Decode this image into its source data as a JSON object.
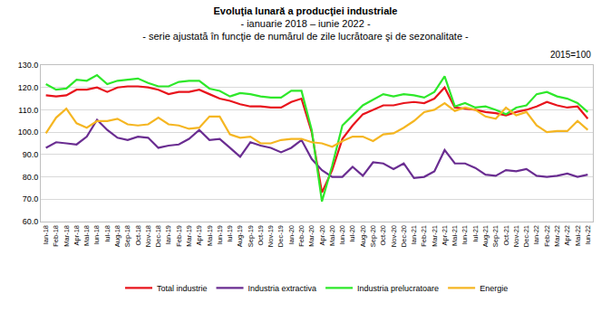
{
  "chart_data": {
    "type": "line",
    "title": "Evoluţia lunară a producţiei industriale",
    "subtitle": [
      "- ianuarie 2018 – iunie 2022 -",
      "- serie ajustată în funcţie de numărul de zile lucrătoare şi de sezonalitate -"
    ],
    "annotations": [
      "2015=100"
    ],
    "categories": [
      "Ian-18",
      "Feb-18",
      "Mar-18",
      "Apr-18",
      "Mai-18",
      "Iun-18",
      "Iul-18",
      "Aug-18",
      "Sep-18",
      "Oct-18",
      "Nov-18",
      "Dec-18",
      "Ian-19",
      "Feb-19",
      "Mar-19",
      "Apr-19",
      "Mai-19",
      "Iun-19",
      "Iul-19",
      "Aug-19",
      "Sep-19",
      "Oct-19",
      "Nov-19",
      "Dec-19",
      "Ian-20",
      "Feb-20",
      "Mar-20",
      "Apr-20",
      "Mai-20",
      "Iun-20",
      "Iul-20",
      "Aug-20",
      "Sep-20",
      "Oct-20",
      "Nov-20",
      "Dec-20",
      "Ian-21",
      "Feb-21",
      "Mar-21",
      "Apr-21",
      "Mai-21",
      "Iun-21",
      "Iul-21",
      "Aug-21",
      "Sep-21",
      "Oct-21",
      "Nov-21",
      "Dec-21",
      "Ian-22",
      "Feb-22",
      "Mar-22",
      "Apr-22",
      "Mai-22",
      "Iun-22"
    ],
    "series": [
      {
        "name": "Total industrie",
        "color": "#e8141c",
        "values": [
          116.5,
          116,
          116.5,
          119,
          119,
          120,
          118,
          120,
          120.5,
          120.5,
          120,
          119,
          117,
          118,
          118,
          119,
          117,
          115,
          114,
          112.5,
          111.5,
          111.5,
          111,
          111,
          113.5,
          115,
          100,
          73,
          83,
          97,
          103,
          108,
          110,
          112,
          112,
          113,
          113.5,
          113,
          115,
          120,
          111,
          110.5,
          110,
          109,
          108.5,
          107.5,
          109,
          110,
          111.5,
          113.5,
          112,
          111,
          111.5,
          106
        ]
      },
      {
        "name": "Industria extractiva",
        "color": "#6a2d91",
        "values": [
          93,
          95.5,
          95,
          94.5,
          98,
          105.5,
          101,
          97.5,
          96.5,
          98,
          97.5,
          93,
          94,
          94.5,
          97,
          101,
          96.5,
          97,
          93,
          89,
          95.5,
          94,
          93,
          91,
          93,
          96.5,
          88,
          83,
          80,
          80,
          84.5,
          80.5,
          86.5,
          86,
          83.5,
          86,
          79.5,
          80,
          82.5,
          92,
          86,
          86,
          84,
          81,
          80.5,
          83,
          82.5,
          83.5,
          80.5,
          80,
          80.5,
          81.5,
          80,
          81
        ]
      },
      {
        "name": "Industria prelucratoare",
        "color": "#2ee82a",
        "values": [
          121.5,
          119,
          119.5,
          123.5,
          123,
          125.5,
          121.5,
          123,
          123.5,
          124,
          122,
          120.5,
          120.5,
          122.5,
          123,
          123,
          119.5,
          118.5,
          116,
          117.5,
          117,
          116,
          115.5,
          115.5,
          118.5,
          118.5,
          101,
          69,
          85,
          103,
          107.5,
          112,
          114.5,
          117,
          116,
          117,
          116.5,
          115.5,
          118,
          125,
          111.5,
          113,
          111,
          111.5,
          110,
          108,
          111,
          112,
          117,
          118,
          116,
          115,
          113,
          109
        ]
      },
      {
        "name": "Energie",
        "color": "#f5b622",
        "values": [
          99.5,
          106.5,
          110.5,
          104,
          102,
          105,
          105,
          106,
          103.5,
          103,
          103.5,
          106.5,
          103.5,
          103,
          101.5,
          102,
          107,
          107,
          99,
          97.5,
          98,
          95,
          95,
          96.5,
          97,
          97,
          95.5,
          95,
          93.5,
          96,
          98,
          98,
          96,
          99,
          99.5,
          102,
          105,
          109,
          110,
          113,
          109.5,
          111,
          110,
          107,
          106,
          111,
          107.5,
          109,
          103,
          100,
          100.5,
          100.5,
          105,
          101
        ]
      }
    ],
    "ylim": [
      60,
      130
    ],
    "yticks": [
      {
        "value": 60,
        "label": "60.0"
      },
      {
        "value": 70,
        "label": "70.0"
      },
      {
        "value": 80,
        "label": "80.0"
      },
      {
        "value": 90,
        "label": "90.0"
      },
      {
        "value": 100,
        "label": "100.0"
      },
      {
        "value": 110,
        "label": "110.0"
      },
      {
        "value": 120,
        "label": "120.0"
      },
      {
        "value": 130,
        "label": "130.0"
      }
    ],
    "grid": true,
    "legend": "bottom",
    "line_style": "solid"
  }
}
